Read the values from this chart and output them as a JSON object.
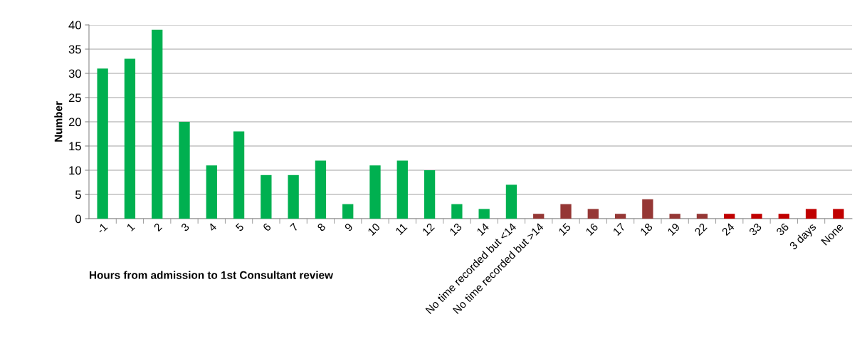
{
  "chart_data": {
    "type": "bar",
    "xlabel": "Hours from admission to 1st Consultant review",
    "ylabel": "Number",
    "categories": [
      "-1",
      "1",
      "2",
      "3",
      "4",
      "5",
      "6",
      "7",
      "8",
      "9",
      "10",
      "11",
      "12",
      "13",
      "14",
      "No time recorded but <14",
      "No time recorded but >14",
      "15",
      "16",
      "17",
      "18",
      "19",
      "22",
      "24",
      "33",
      "36",
      "3 days",
      "None"
    ],
    "values": [
      31,
      33,
      39,
      20,
      11,
      18,
      9,
      9,
      12,
      3,
      11,
      12,
      10,
      3,
      2,
      7,
      1,
      3,
      2,
      1,
      4,
      1,
      1,
      1,
      1,
      1,
      2,
      2
    ],
    "colors": [
      "#00b050",
      "#00b050",
      "#00b050",
      "#00b050",
      "#00b050",
      "#00b050",
      "#00b050",
      "#00b050",
      "#00b050",
      "#00b050",
      "#00b050",
      "#00b050",
      "#00b050",
      "#00b050",
      "#00b050",
      "#00b050",
      "#953735",
      "#953735",
      "#953735",
      "#953735",
      "#953735",
      "#953735",
      "#953735",
      "#c00000",
      "#c00000",
      "#c00000",
      "#c00000",
      "#c00000"
    ],
    "ylim": [
      0,
      40
    ],
    "yticks": [
      0,
      5,
      10,
      15,
      20,
      25,
      30,
      35,
      40
    ],
    "grid": "y",
    "legend": false
  }
}
